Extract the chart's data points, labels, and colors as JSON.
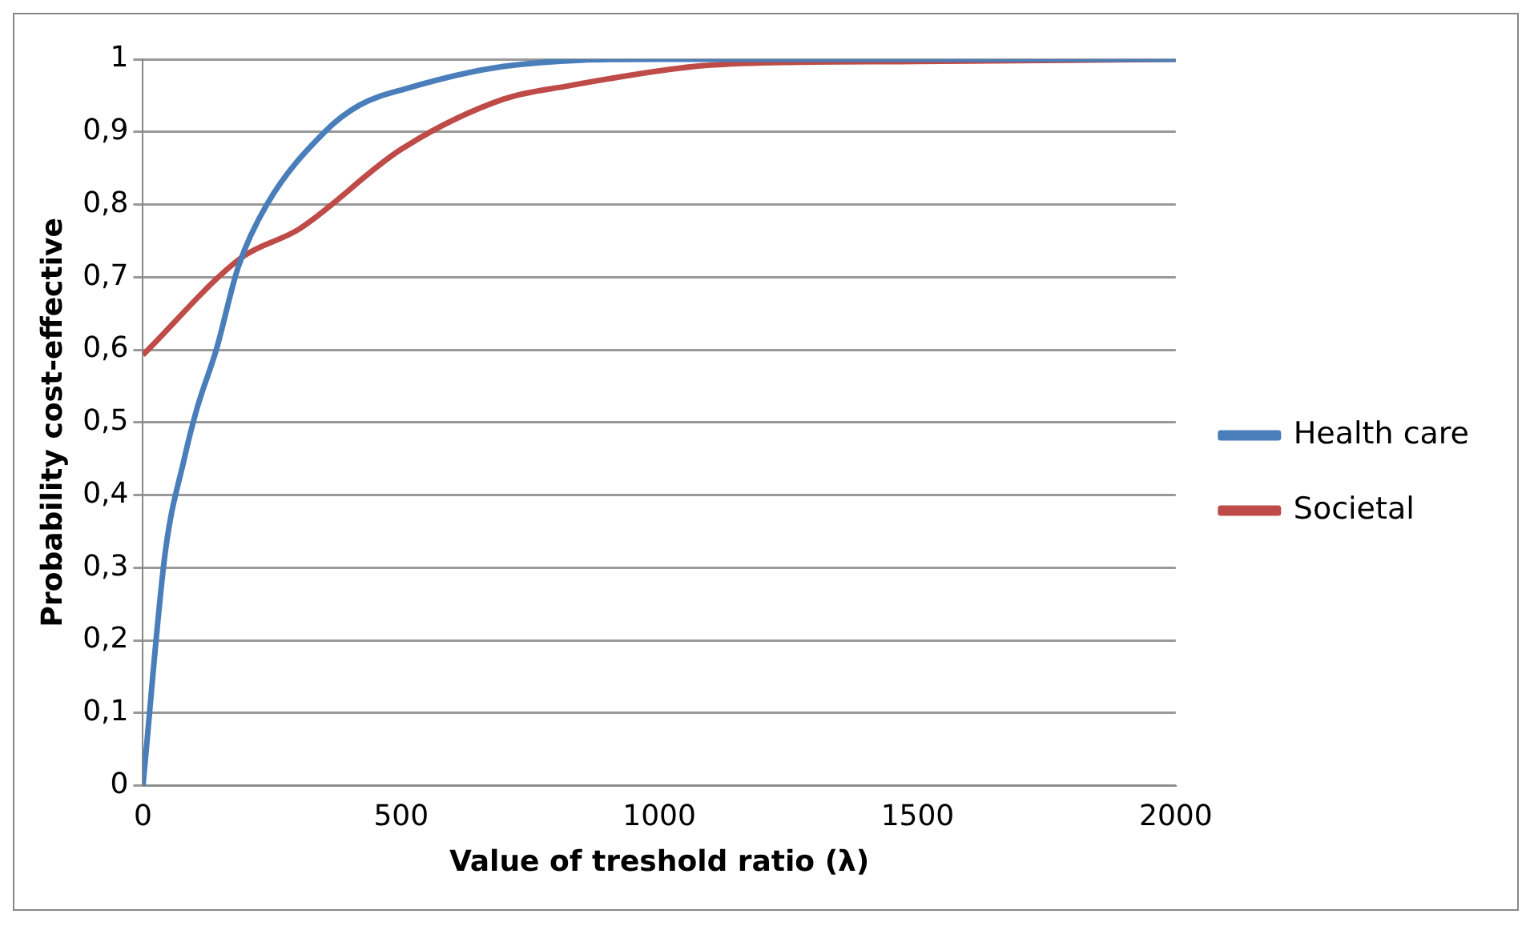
{
  "chart_data": {
    "type": "line",
    "xlabel": "Value of treshold ratio (λ)",
    "ylabel": "Probability cost-effective",
    "xlim": [
      0,
      2000
    ],
    "xticks": [
      0,
      500,
      1000,
      1500,
      2000
    ],
    "ylim": [
      0,
      1
    ],
    "yticks": [
      0,
      {
        "value": 0.1,
        "label": "0,1"
      },
      {
        "value": 0.2,
        "label": "0,2"
      },
      {
        "value": 0.3,
        "label": "0,3"
      },
      {
        "value": 0.4,
        "label": "0,4"
      },
      {
        "value": 0.5,
        "label": "0,5"
      },
      {
        "value": 0.6,
        "label": "0,6"
      },
      {
        "value": 0.7,
        "label": "0,7"
      },
      {
        "value": 0.8,
        "label": "0,8"
      },
      {
        "value": 0.9,
        "label": "0,9"
      },
      1
    ],
    "grid": "y",
    "legend": "right",
    "marker": "none",
    "line_style": "solid",
    "series": [
      {
        "name": "Health care",
        "color": "#4a7ebb",
        "x": [
          0,
          43,
          80,
          105,
          142,
          185,
          240,
          352,
          420,
          512,
          698,
          1000,
          1500,
          2000
        ],
        "values": [
          0,
          0.32,
          0.45,
          0.52,
          0.6,
          0.715,
          0.8,
          0.9,
          0.937,
          0.96,
          0.99,
          1,
          1,
          1
        ]
      },
      {
        "name": "Societal",
        "color": "#be4b48",
        "x": [
          0,
          191,
          302,
          500,
          698,
          821,
          1068,
          1200,
          1500,
          2000
        ],
        "values": [
          0.593,
          0.727,
          0.766,
          0.876,
          0.945,
          0.963,
          0.99,
          0.995,
          0.997,
          1
        ]
      }
    ]
  }
}
